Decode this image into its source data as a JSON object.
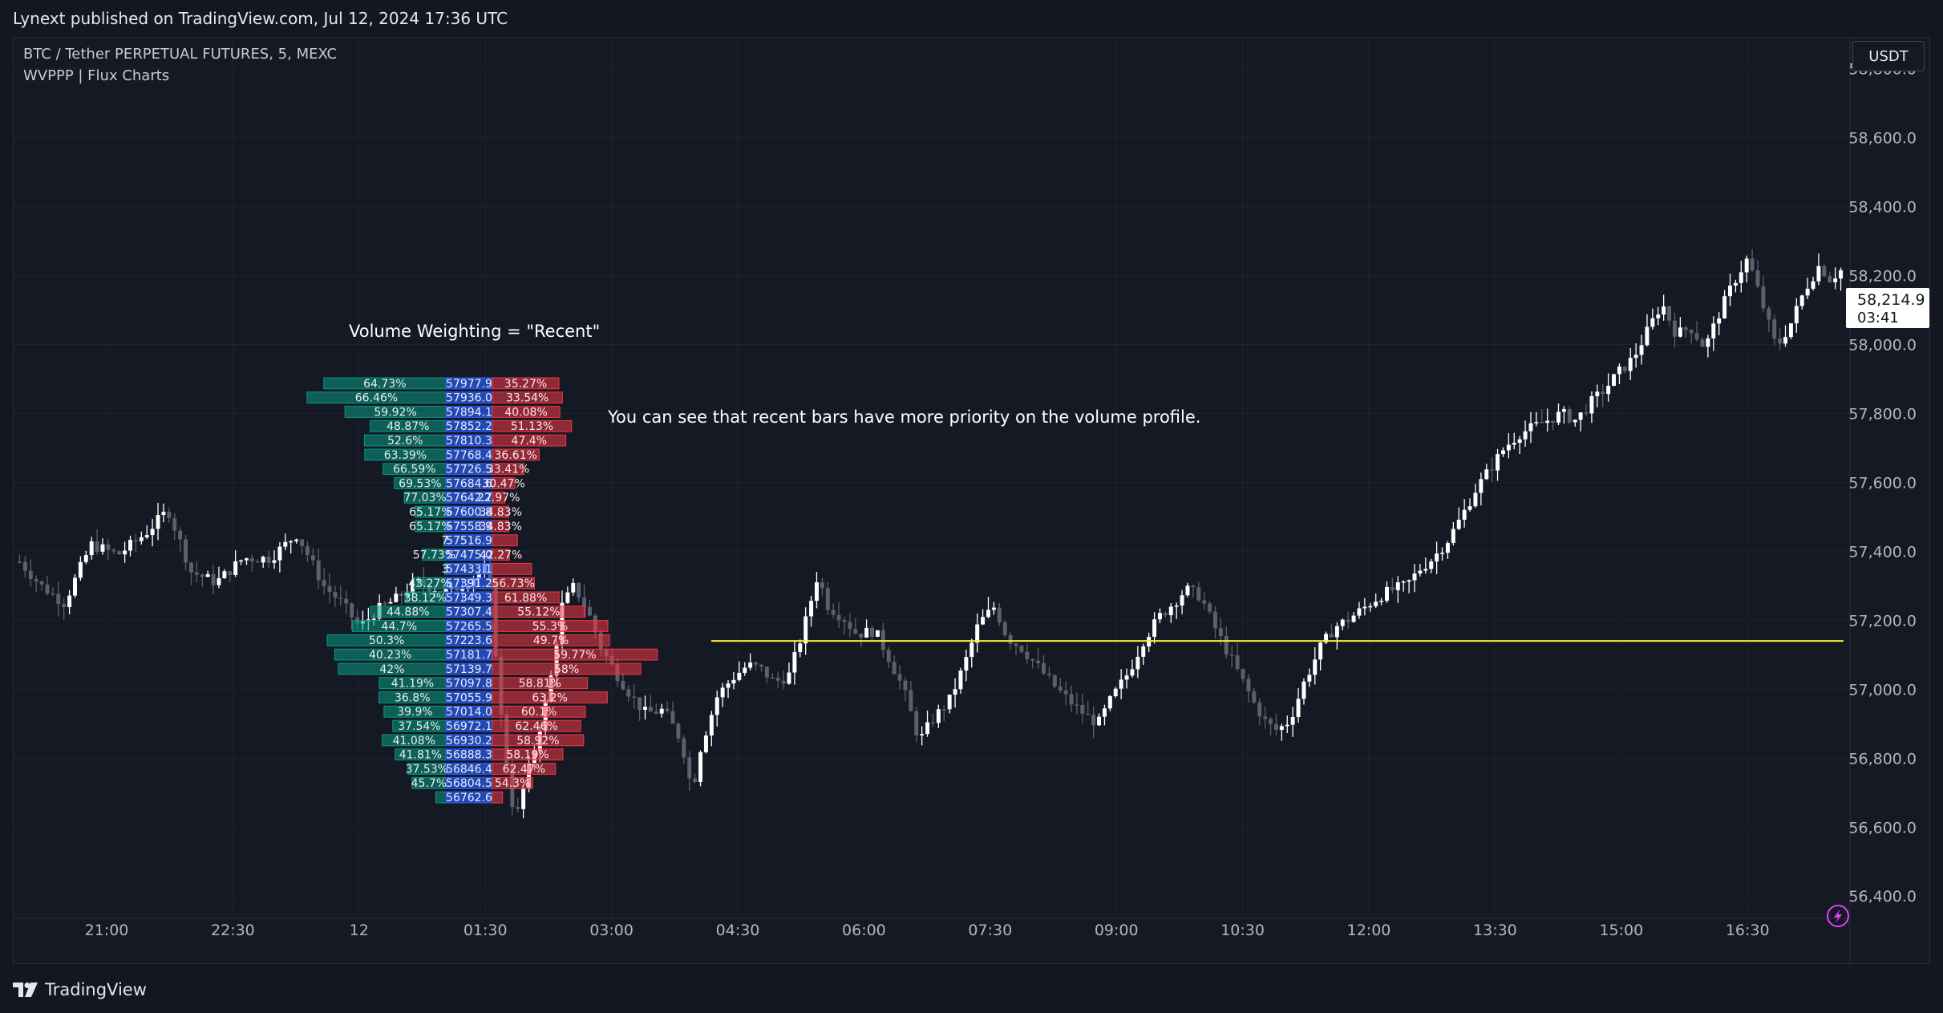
{
  "header": {
    "published_text": "Lynext published on TradingView.com, Jul 12, 2024 17:36 UTC"
  },
  "legend": {
    "symbol_line": "BTC / Tether PERPETUAL FUTURES, 5, MEXC",
    "indicator_line": "WVPPP | Flux Charts"
  },
  "currency_button": "USDT",
  "footer": {
    "brand": "TradingView"
  },
  "colors": {
    "background": "#131722",
    "bullish_candle": "#ffffff",
    "bearish_candle": "#5d606b",
    "buy_volume": "#089981",
    "sell_volume": "#f23645",
    "price_level": "#2962ff",
    "poc_line": "#ffeb3b",
    "grid": "#1e222d",
    "flash_icon": "#e040fb"
  },
  "icons": [
    "flash-icon",
    "tradingview-logo-icon"
  ],
  "chart_data": {
    "type": "candlestick",
    "symbol": "BTC / Tether PERPETUAL FUTURES",
    "timeframe": "5",
    "exchange": "MEXC",
    "last_price": "58,214.9",
    "countdown": "03:41",
    "y_ticks": [
      "58,800.0",
      "58,600.0",
      "58,400.0",
      "58,200.0",
      "58,000.0",
      "57,800.0",
      "57,600.0",
      "57,400.0",
      "57,200.0",
      "57,000.0",
      "56,800.0",
      "56,600.0",
      "56,400.0"
    ],
    "y_tick_values": [
      58800,
      58600,
      58400,
      58200,
      58000,
      57800,
      57600,
      57400,
      57200,
      57000,
      56800,
      56600,
      56400
    ],
    "ylim": [
      56340,
      58890
    ],
    "x_ticks": [
      "21:00",
      "22:30",
      "12",
      "01:30",
      "03:00",
      "04:30",
      "06:00",
      "07:30",
      "09:00",
      "10:30",
      "12:00",
      "13:30",
      "15:00",
      "16:30"
    ],
    "grid": true,
    "price_path": [
      [
        0,
        57370
      ],
      [
        12,
        57300
      ],
      [
        25,
        57250
      ],
      [
        40,
        57420
      ],
      [
        55,
        57390
      ],
      [
        70,
        57450
      ],
      [
        83,
        57520
      ],
      [
        96,
        57340
      ],
      [
        110,
        57310
      ],
      [
        125,
        57380
      ],
      [
        140,
        57380
      ],
      [
        155,
        57450
      ],
      [
        170,
        57300
      ],
      [
        180,
        57250
      ],
      [
        190,
        57180
      ],
      [
        200,
        57230
      ],
      [
        210,
        57260
      ],
      [
        222,
        57310
      ],
      [
        240,
        57280
      ],
      [
        255,
        57330
      ],
      [
        262,
        57360
      ],
      [
        270,
        56870
      ],
      [
        277,
        56610
      ],
      [
        282,
        56720
      ],
      [
        288,
        56830
      ],
      [
        296,
        57000
      ],
      [
        303,
        57240
      ],
      [
        310,
        57300
      ],
      [
        318,
        57220
      ],
      [
        325,
        57120
      ],
      [
        333,
        57050
      ],
      [
        342,
        56980
      ],
      [
        350,
        56930
      ],
      [
        360,
        56940
      ],
      [
        370,
        56850
      ],
      [
        376,
        56700
      ],
      [
        380,
        56820
      ],
      [
        390,
        56980
      ],
      [
        398,
        57030
      ],
      [
        407,
        57070
      ],
      [
        414,
        57060
      ],
      [
        422,
        57020
      ],
      [
        430,
        57040
      ],
      [
        438,
        57170
      ],
      [
        446,
        57330
      ],
      [
        452,
        57240
      ],
      [
        460,
        57210
      ],
      [
        468,
        57160
      ],
      [
        478,
        57170
      ],
      [
        486,
        57090
      ],
      [
        494,
        57000
      ],
      [
        503,
        56850
      ],
      [
        510,
        56910
      ],
      [
        520,
        56970
      ],
      [
        528,
        57070
      ],
      [
        536,
        57190
      ],
      [
        545,
        57240
      ],
      [
        552,
        57150
      ],
      [
        560,
        57120
      ],
      [
        570,
        57060
      ],
      [
        580,
        57000
      ],
      [
        590,
        56950
      ],
      [
        597,
        56920
      ],
      [
        603,
        56900
      ],
      [
        610,
        56970
      ],
      [
        620,
        57050
      ],
      [
        628,
        57140
      ],
      [
        637,
        57210
      ],
      [
        645,
        57250
      ],
      [
        652,
        57290
      ],
      [
        660,
        57270
      ],
      [
        668,
        57180
      ],
      [
        675,
        57110
      ],
      [
        682,
        57040
      ],
      [
        690,
        56960
      ],
      [
        697,
        56900
      ],
      [
        703,
        56880
      ],
      [
        710,
        56910
      ],
      [
        718,
        57020
      ],
      [
        727,
        57120
      ],
      [
        735,
        57180
      ],
      [
        742,
        57200
      ],
      [
        750,
        57230
      ],
      [
        760,
        57270
      ],
      [
        768,
        57290
      ],
      [
        775,
        57300
      ],
      [
        783,
        57350
      ],
      [
        790,
        57380
      ],
      [
        798,
        57430
      ],
      [
        806,
        57500
      ],
      [
        814,
        57580
      ],
      [
        822,
        57640
      ],
      [
        830,
        57700
      ],
      [
        838,
        57740
      ],
      [
        846,
        57760
      ],
      [
        854,
        57780
      ],
      [
        862,
        57800
      ],
      [
        870,
        57780
      ],
      [
        878,
        57830
      ],
      [
        886,
        57870
      ],
      [
        894,
        57920
      ],
      [
        902,
        57960
      ],
      [
        910,
        58040
      ],
      [
        918,
        58120
      ],
      [
        926,
        58030
      ],
      [
        934,
        58050
      ],
      [
        942,
        57990
      ],
      [
        950,
        58090
      ],
      [
        958,
        58180
      ],
      [
        966,
        58250
      ],
      [
        974,
        58120
      ],
      [
        982,
        57990
      ],
      [
        990,
        58060
      ],
      [
        998,
        58160
      ],
      [
        1006,
        58230
      ],
      [
        1012,
        58190
      ],
      [
        1018,
        58214.9
      ]
    ],
    "poc_line": {
      "price": 57140,
      "from_label": "57139.7"
    },
    "annotations": [
      "Volume Weighting = \"Recent\"",
      "You can see that recent bars have more priority on the volume profile."
    ],
    "volume_profile": {
      "weighting": "Recent",
      "rows": [
        {
          "price": "57977.9",
          "buy_pct": "64.73%",
          "sell_pct": "35.27%",
          "total": 28
        },
        {
          "price": "57936.0",
          "buy_pct": "66.46%",
          "sell_pct": "33.54%",
          "total": 31
        },
        {
          "price": "57894.1",
          "buy_pct": "59.92%",
          "sell_pct": "40.08%",
          "total": 25
        },
        {
          "price": "57852.2",
          "buy_pct": "48.87%",
          "sell_pct": "51.13%",
          "total": 23
        },
        {
          "price": "57810.3",
          "buy_pct": "52.6%",
          "sell_pct": "47.4%",
          "total": 23
        },
        {
          "price": "57768.4",
          "buy_pct": "63.39%",
          "sell_pct": "36.61%",
          "total": 19
        },
        {
          "price": "57726.5",
          "buy_pct": "66.59%",
          "sell_pct": "33.41%",
          "total": 14
        },
        {
          "price": "57684.6",
          "buy_pct": "69.53%",
          "sell_pct": "30.47%",
          "total": 11
        },
        {
          "price": "57642.7",
          "buy_pct": "77.03%",
          "sell_pct": "22.97%",
          "total": 8
        },
        {
          "price": "57600.8",
          "buy_pct": "65.17%",
          "sell_pct": "34.83%",
          "total": 7
        },
        {
          "price": "57558.9",
          "buy_pct": "65.17%",
          "sell_pct": "34.83%",
          "total": 7
        },
        {
          "price": "57516.9",
          "buy_pct": "7",
          "sell_pct": "",
          "total": 4
        },
        {
          "price": "57475.0",
          "buy_pct": "57.73%",
          "sell_pct": "42.27%",
          "total": 6
        },
        {
          "price": "57433.1",
          "buy_pct": "3",
          "sell_pct": "",
          "total": 6
        },
        {
          "price": "57391.2",
          "buy_pct": "43.27%",
          "sell_pct": "56.73%",
          "total": 11
        },
        {
          "price": "57349.3",
          "buy_pct": "38.12%",
          "sell_pct": "61.88%",
          "total": 16
        },
        {
          "price": "57307.4",
          "buy_pct": "44.88%",
          "sell_pct": "55.12%",
          "total": 25
        },
        {
          "price": "57265.5",
          "buy_pct": "44.7%",
          "sell_pct": "55.3%",
          "total": 31
        },
        {
          "price": "57223.6",
          "buy_pct": "50.3%",
          "sell_pct": "49.7%",
          "total": 35
        },
        {
          "price": "57181.7",
          "buy_pct": "40.23%",
          "sell_pct": "59.77%",
          "total": 41
        },
        {
          "price": "57139.7",
          "buy_pct": "42%",
          "sell_pct": "58%",
          "total": 38
        },
        {
          "price": "57097.8",
          "buy_pct": "41.19%",
          "sell_pct": "58.81%",
          "total": 24
        },
        {
          "price": "57055.9",
          "buy_pct": "36.8%",
          "sell_pct": "63.2%",
          "total": 27
        },
        {
          "price": "57014.0",
          "buy_pct": "39.9%",
          "sell_pct": "60.1%",
          "total": 23
        },
        {
          "price": "56972.1",
          "buy_pct": "37.54%",
          "sell_pct": "62.46%",
          "total": 21
        },
        {
          "price": "56930.2",
          "buy_pct": "41.08%",
          "sell_pct": "58.92%",
          "total": 23
        },
        {
          "price": "56888.3",
          "buy_pct": "41.81%",
          "sell_pct": "58.19%",
          "total": 18
        },
        {
          "price": "56846.4",
          "buy_pct": "37.53%",
          "sell_pct": "62.47%",
          "total": 15
        },
        {
          "price": "56804.5",
          "buy_pct": "45.7%",
          "sell_pct": "54.3%",
          "total": 11
        },
        {
          "price": "56762.6",
          "buy_pct": "",
          "sell_pct": "",
          "total": 3
        }
      ]
    }
  }
}
